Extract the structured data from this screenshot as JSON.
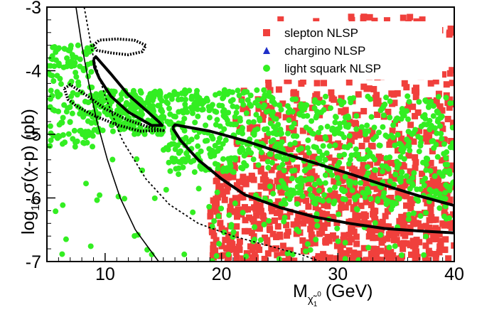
{
  "chart_data": {
    "type": "scatter",
    "xlabel": {
      "main": "M",
      "sub": "χ̃",
      "subsub": "1",
      "supsub": "0",
      "unit": "(GeV)"
    },
    "ylabel": {
      "pre": "log",
      "sub": "10",
      "post": " σ(χ-p) (pb)"
    },
    "xlim": [
      5,
      40
    ],
    "ylim": [
      -7,
      -3
    ],
    "x_ticks": [
      10,
      20,
      30,
      40
    ],
    "y_ticks": [
      -7,
      -6,
      -5,
      -4,
      -3
    ],
    "x_tick_labels": [
      "10",
      "20",
      "30",
      "40"
    ],
    "y_tick_labels": [
      "-7",
      "-6",
      "-5",
      "-4",
      "-3"
    ],
    "grid": false,
    "legend_position": "top-right",
    "series": [
      {
        "name": "slepton NLSP",
        "marker": "square",
        "color": "#f0403c",
        "regions": [
          {
            "x": [
              19,
              40
            ],
            "y": [
              -7,
              -5.5
            ],
            "n": 700
          },
          {
            "x": [
              21,
              40
            ],
            "y": [
              -5.5,
              -4.3
            ],
            "n": 220
          },
          {
            "x": [
              24,
              40
            ],
            "y": [
              -4.3,
              -3.15
            ],
            "n": 160
          }
        ]
      },
      {
        "name": "chargino NLSP",
        "marker": "triangle",
        "color": "#1f2fc8",
        "regions": []
      },
      {
        "name": "light squark NLSP",
        "marker": "circle",
        "color": "#33ee22",
        "regions": [
          {
            "x": [
              5,
              9
            ],
            "y": [
              -5.2,
              -3.6
            ],
            "n": 140
          },
          {
            "x": [
              9,
              15
            ],
            "y": [
              -5.0,
              -4.3
            ],
            "n": 220
          },
          {
            "x": [
              15,
              25
            ],
            "y": [
              -5.6,
              -4.3
            ],
            "n": 320
          },
          {
            "x": [
              25,
              40
            ],
            "y": [
              -6.1,
              -4.4
            ],
            "n": 420
          },
          {
            "x": [
              19,
              40
            ],
            "y": [
              -7.0,
              -5.8
            ],
            "n": 90
          },
          {
            "x": [
              5,
              20
            ],
            "y": [
              -7.0,
              -5.3
            ],
            "n": 28
          }
        ]
      }
    ],
    "contours": [
      {
        "style": "thick-solid",
        "points": [
          [
            9.0,
            -3.82
          ],
          [
            9.2,
            -3.78
          ],
          [
            10.5,
            -4.05
          ],
          [
            12.0,
            -4.38
          ],
          [
            13.5,
            -4.62
          ],
          [
            14.6,
            -4.8
          ],
          [
            14.9,
            -4.86
          ],
          [
            14.0,
            -4.86
          ],
          [
            12.0,
            -4.65
          ],
          [
            10.5,
            -4.4
          ],
          [
            9.5,
            -4.12
          ],
          [
            9.1,
            -3.95
          ],
          [
            9.0,
            -3.82
          ]
        ]
      },
      {
        "style": "thick-solid",
        "points": [
          [
            15.8,
            -4.9
          ],
          [
            16.0,
            -4.85
          ],
          [
            19.0,
            -4.95
          ],
          [
            22.0,
            -5.1
          ],
          [
            25.0,
            -5.28
          ],
          [
            28.0,
            -5.45
          ],
          [
            31.0,
            -5.62
          ],
          [
            34.0,
            -5.8
          ],
          [
            37.0,
            -5.97
          ],
          [
            40.0,
            -6.12
          ],
          [
            40.0,
            -6.55
          ],
          [
            37.0,
            -6.52
          ],
          [
            34.0,
            -6.48
          ],
          [
            31.0,
            -6.4
          ],
          [
            28.0,
            -6.3
          ],
          [
            25.0,
            -6.15
          ],
          [
            22.0,
            -5.95
          ],
          [
            20.0,
            -5.7
          ],
          [
            18.0,
            -5.4
          ],
          [
            16.5,
            -5.1
          ],
          [
            15.8,
            -4.9
          ]
        ]
      },
      {
        "style": "thick-dotted",
        "points": [
          [
            6.5,
            -4.28
          ],
          [
            7.0,
            -4.22
          ],
          [
            8.5,
            -4.4
          ],
          [
            10.0,
            -4.6
          ],
          [
            12.0,
            -4.78
          ],
          [
            14.0,
            -4.9
          ],
          [
            15.0,
            -4.94
          ],
          [
            13.0,
            -4.95
          ],
          [
            11.0,
            -4.85
          ],
          [
            9.0,
            -4.7
          ],
          [
            7.5,
            -4.55
          ],
          [
            6.8,
            -4.45
          ],
          [
            6.5,
            -4.28
          ]
        ]
      },
      {
        "style": "thick-dotted",
        "points": [
          [
            9.0,
            -3.6
          ],
          [
            9.5,
            -3.52
          ],
          [
            11.0,
            -3.5
          ],
          [
            12.5,
            -3.52
          ],
          [
            13.5,
            -3.6
          ],
          [
            13.2,
            -3.7
          ],
          [
            12.0,
            -3.75
          ],
          [
            10.5,
            -3.72
          ],
          [
            9.3,
            -3.68
          ],
          [
            9.0,
            -3.6
          ]
        ]
      },
      {
        "style": "thin-solid",
        "points": [
          [
            7.5,
            -3.0
          ],
          [
            8.0,
            -3.6
          ],
          [
            8.6,
            -4.2
          ],
          [
            9.3,
            -4.8
          ],
          [
            10.2,
            -5.4
          ],
          [
            11.3,
            -6.0
          ],
          [
            12.6,
            -6.5
          ],
          [
            14.0,
            -6.85
          ],
          [
            14.6,
            -7.0
          ]
        ]
      },
      {
        "style": "thin-dotted",
        "points": [
          [
            8.2,
            -3.0
          ],
          [
            9.0,
            -3.8
          ],
          [
            10.0,
            -4.4
          ],
          [
            11.5,
            -5.1
          ],
          [
            13.5,
            -5.7
          ],
          [
            15.5,
            -6.1
          ],
          [
            18.0,
            -6.4
          ],
          [
            21.0,
            -6.6
          ],
          [
            24.0,
            -6.75
          ],
          [
            27.0,
            -6.9
          ],
          [
            28.5,
            -7.0
          ]
        ]
      }
    ]
  }
}
